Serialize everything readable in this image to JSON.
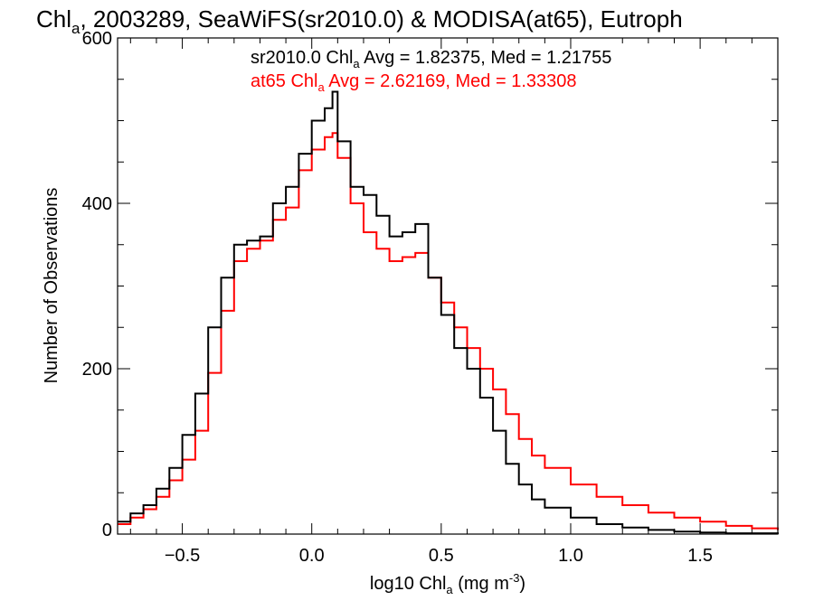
{
  "chart_data": {
    "type": "line",
    "title": {
      "base": "Chl",
      "sub": "a",
      "rest": ", 2003289, SeaWiFS(sr2010.0) & MODISA(at65), Eutroph"
    },
    "xlabel": {
      "base": "log10 Chl",
      "sub": "a",
      "mid": " (mg m",
      "sup": "-3",
      "end": ")"
    },
    "ylabel": "Number of Observations",
    "xlim": [
      -0.75,
      1.8
    ],
    "ylim": [
      0,
      600
    ],
    "x_ticks": [
      -0.5,
      0.0,
      0.5,
      1.0,
      1.5
    ],
    "x_tick_labels": [
      "−0.5",
      "0.0",
      "0.5",
      "1.0",
      "1.5"
    ],
    "y_ticks": [
      0,
      200,
      400,
      600
    ],
    "y_tick_labels": [
      "0",
      "200",
      "400",
      "600"
    ],
    "legend": [
      {
        "base": "sr2010.0 Chl",
        "sub": "a",
        "rest": " Avg = 1.82375, Med = 1.21755",
        "color": "#000000"
      },
      {
        "base": "at65 Chl",
        "sub": "a",
        "rest": " Avg = 2.62169, Med = 1.33308",
        "color": "#ff0000"
      }
    ],
    "series": [
      {
        "color": "#000000",
        "x": [
          -0.75,
          -0.7,
          -0.65,
          -0.6,
          -0.55,
          -0.5,
          -0.45,
          -0.4,
          -0.35,
          -0.3,
          -0.25,
          -0.2,
          -0.15,
          -0.1,
          -0.05,
          0.0,
          0.05,
          0.08,
          0.1,
          0.15,
          0.2,
          0.25,
          0.3,
          0.35,
          0.4,
          0.45,
          0.5,
          0.55,
          0.6,
          0.65,
          0.7,
          0.75,
          0.8,
          0.85,
          0.9,
          1.0,
          1.1,
          1.2,
          1.3,
          1.4,
          1.5,
          1.6,
          1.7,
          1.8
        ],
        "values": [
          15,
          25,
          35,
          55,
          80,
          120,
          170,
          250,
          310,
          350,
          355,
          360,
          400,
          420,
          460,
          500,
          515,
          535,
          475,
          420,
          410,
          385,
          360,
          365,
          375,
          310,
          265,
          225,
          200,
          165,
          125,
          85,
          60,
          42,
          32,
          20,
          12,
          8,
          5,
          3,
          2,
          1,
          1,
          0
        ]
      },
      {
        "color": "#ff0000",
        "x": [
          -0.75,
          -0.7,
          -0.65,
          -0.6,
          -0.55,
          -0.5,
          -0.45,
          -0.4,
          -0.35,
          -0.3,
          -0.25,
          -0.2,
          -0.15,
          -0.1,
          -0.05,
          0.0,
          0.05,
          0.08,
          0.1,
          0.15,
          0.2,
          0.25,
          0.3,
          0.35,
          0.4,
          0.45,
          0.5,
          0.55,
          0.6,
          0.65,
          0.7,
          0.75,
          0.8,
          0.85,
          0.9,
          1.0,
          1.1,
          1.2,
          1.3,
          1.4,
          1.5,
          1.6,
          1.7,
          1.8
        ],
        "values": [
          12,
          20,
          30,
          45,
          65,
          90,
          125,
          195,
          270,
          330,
          345,
          355,
          380,
          395,
          440,
          465,
          480,
          485,
          455,
          400,
          365,
          345,
          330,
          335,
          340,
          310,
          280,
          250,
          225,
          200,
          175,
          145,
          115,
          95,
          80,
          60,
          45,
          35,
          26,
          20,
          15,
          10,
          7,
          5
        ]
      }
    ]
  }
}
